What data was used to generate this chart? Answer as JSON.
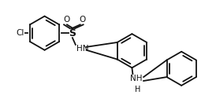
{
  "bg_color": "#ffffff",
  "line_color": "#111111",
  "line_width": 1.3,
  "font_size": 7.5,
  "figsize": [
    2.74,
    1.21
  ],
  "dpi": 100,
  "xlim": [
    0,
    274
  ],
  "ylim": [
    0,
    121
  ],
  "ring_r": 22
}
